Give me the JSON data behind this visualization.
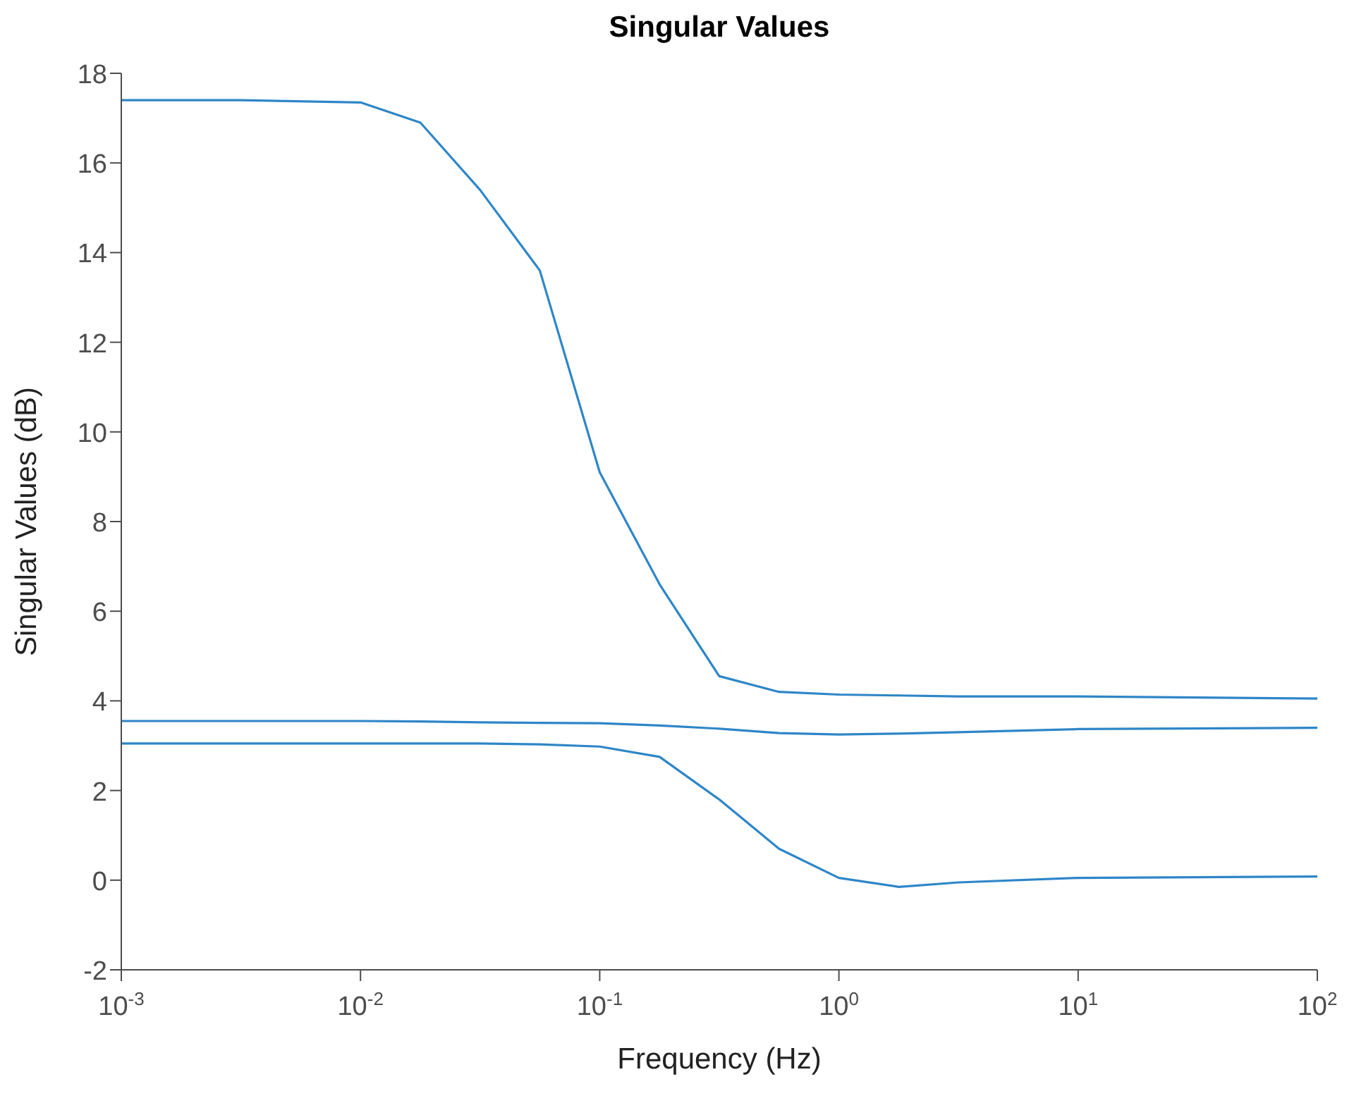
{
  "chart_data": {
    "type": "line",
    "title": "Singular Values",
    "xlabel": "Frequency (Hz)",
    "ylabel": "Singular Values (dB)",
    "log": "x",
    "xlim": [
      0.001,
      100
    ],
    "ylim": [
      -2,
      18
    ],
    "xticks": [
      {
        "value": 0.001,
        "label": "10$^{-3}$"
      },
      {
        "value": 0.01,
        "label": "10$^{-2}$"
      },
      {
        "value": 0.1,
        "label": "10$^{-1}$"
      },
      {
        "value": 1,
        "label": "10$^{0}$"
      },
      {
        "value": 10,
        "label": "10$^{1}$"
      },
      {
        "value": 100,
        "label": "10$^{2}$"
      }
    ],
    "yticks": [
      -2,
      0,
      2,
      4,
      6,
      8,
      10,
      12,
      14,
      16,
      18
    ],
    "x": [
      0.001,
      0.00316,
      0.01,
      0.0178,
      0.0316,
      0.0562,
      0.1,
      0.178,
      0.316,
      0.562,
      1,
      1.78,
      3.16,
      10,
      100
    ],
    "series": [
      {
        "color": "#2e86c8",
        "values": [
          17.4,
          17.4,
          17.35,
          16.9,
          15.4,
          13.6,
          9.1,
          6.6,
          4.55,
          4.2,
          4.14,
          4.12,
          4.1,
          4.1,
          4.05
        ]
      },
      {
        "color": "#2e86c8",
        "values": [
          3.55,
          3.55,
          3.55,
          3.54,
          3.52,
          3.51,
          3.5,
          3.45,
          3.38,
          3.28,
          3.25,
          3.27,
          3.3,
          3.37,
          3.4
        ]
      },
      {
        "color": "#2e86c8",
        "values": [
          3.05,
          3.05,
          3.05,
          3.05,
          3.05,
          3.03,
          2.98,
          2.75,
          1.8,
          0.7,
          0.05,
          -0.15,
          -0.05,
          0.05,
          0.08
        ]
      }
    ]
  }
}
